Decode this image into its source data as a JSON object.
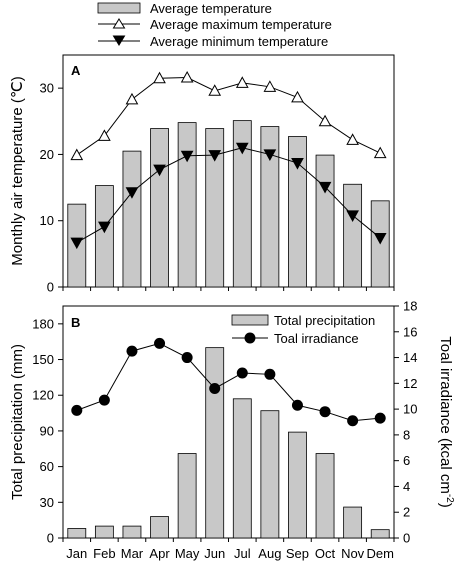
{
  "chart_data": [
    {
      "panel_label": "A",
      "type": "bar+line",
      "ylabel": "Monthly air temperature (℃)",
      "ylim": [
        0,
        35
      ],
      "yticks": [
        0,
        10,
        20,
        30
      ],
      "categories": [
        "Jan",
        "Feb",
        "Mar",
        "Apr",
        "May",
        "Jun",
        "Jul",
        "Aug",
        "Sep",
        "Oct",
        "Nov",
        "Dem"
      ],
      "series": [
        {
          "name": "Average temperature",
          "kind": "bar",
          "color": "#c8c8c8",
          "values": [
            12.5,
            15.3,
            20.5,
            23.9,
            24.8,
            23.9,
            25.1,
            24.2,
            22.7,
            19.9,
            15.5,
            13.0
          ]
        },
        {
          "name": "Average maximum temperature",
          "kind": "line",
          "marker": "triangle-up-open",
          "values": [
            19.9,
            22.8,
            28.3,
            31.5,
            31.6,
            29.6,
            30.8,
            30.2,
            28.6,
            25.0,
            22.2,
            20.2
          ]
        },
        {
          "name": "Average minimum temperature",
          "kind": "line",
          "marker": "triangle-down-filled",
          "values": [
            6.7,
            9.1,
            14.3,
            17.7,
            19.8,
            19.9,
            21.0,
            20.0,
            18.7,
            15.1,
            10.8,
            7.4
          ]
        }
      ],
      "legend_position": "top (above panels)"
    },
    {
      "panel_label": "B",
      "type": "bar+line",
      "ylabel": "Total precipitation (mm)",
      "ylim": [
        0,
        195
      ],
      "yticks": [
        0,
        30,
        60,
        90,
        120,
        150,
        180
      ],
      "y2label": "Toal irradiance (kcal cm",
      "y2label_superscript": "-2",
      "y2label_close": ")",
      "y2lim": [
        0,
        18
      ],
      "y2ticks": [
        0,
        2,
        4,
        6,
        8,
        10,
        12,
        14,
        16,
        18
      ],
      "categories": [
        "Jan",
        "Feb",
        "Mar",
        "Apr",
        "May",
        "Jun",
        "Jul",
        "Aug",
        "Sep",
        "Oct",
        "Nov",
        "Dem"
      ],
      "series": [
        {
          "name": "Total precipitation",
          "kind": "bar",
          "axis": "left",
          "color": "#c8c8c8",
          "values": [
            8,
            10,
            10,
            18,
            71,
            160,
            117,
            107,
            89,
            71,
            26,
            7
          ]
        },
        {
          "name": "Toal irradiance",
          "kind": "line",
          "axis": "right",
          "marker": "circle-filled",
          "values": [
            9.9,
            10.7,
            14.5,
            15.1,
            14.0,
            11.6,
            12.8,
            12.7,
            10.3,
            9.8,
            9.1,
            9.3
          ]
        }
      ],
      "legend_position": "top-right"
    }
  ]
}
